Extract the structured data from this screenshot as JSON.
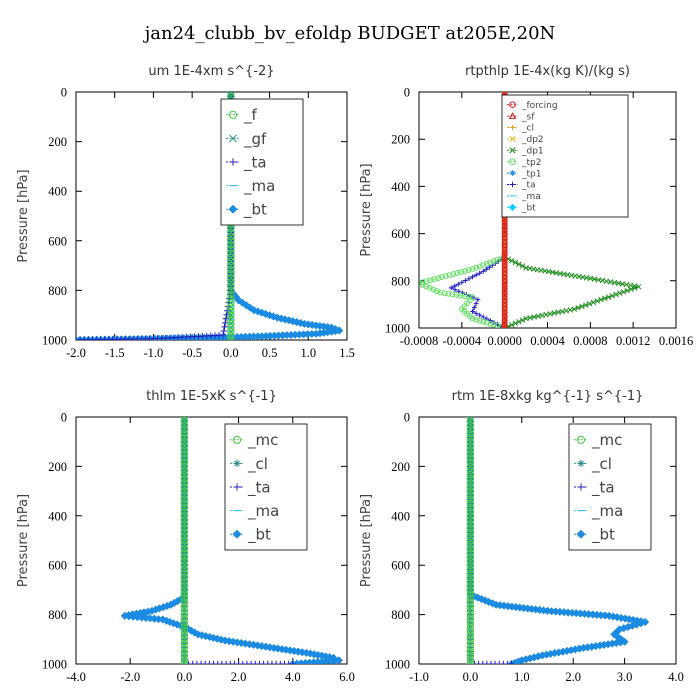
{
  "suptitle": "jan24_clubb_bv_efoldp  BUDGET at205E,20N",
  "chart_data": [
    {
      "type": "line",
      "title": "um   1E-4xm s^{-2}",
      "ylabel": "Pressure [hPa]",
      "xlim": [
        -2.0,
        1.5
      ],
      "ylim": [
        1000,
        0
      ],
      "xticks": [
        "-2.0",
        "-1.5",
        "-1.0",
        "-0.5",
        "0.0",
        "0.5",
        "1.0",
        "1.5"
      ],
      "yticks": [
        "0",
        "200",
        "400",
        "600",
        "800",
        "1000"
      ],
      "legend_position": "upper-right",
      "series": [
        {
          "name": "_f",
          "color": "#44cc44",
          "marker": "circle",
          "points": [
            [
              0.0,
              0
            ],
            [
              0.0,
              1000
            ]
          ]
        },
        {
          "name": "_gf",
          "color": "#2f8f8f",
          "marker": "x",
          "points": [
            [
              0.0,
              0
            ],
            [
              0.0,
              1000
            ]
          ]
        },
        {
          "name": "_ta",
          "color": "#2020c0",
          "marker": "plus",
          "points": [
            [
              0.0,
              0
            ],
            [
              0.0,
              800
            ],
            [
              -0.1,
              980
            ],
            [
              -1.0,
              995
            ],
            [
              -2.0,
              1000
            ]
          ]
        },
        {
          "name": "_ma",
          "color": "#30c0ff",
          "marker": "dash",
          "points": [
            [
              0.0,
              0
            ],
            [
              0.0,
              1000
            ]
          ]
        },
        {
          "name": "_bt",
          "color": "#1a8be0",
          "marker": "diamond",
          "points": [
            [
              0.0,
              0
            ],
            [
              0.0,
              760
            ],
            [
              0.0,
              800
            ],
            [
              0.1,
              840
            ],
            [
              0.3,
              880
            ],
            [
              0.6,
              910
            ],
            [
              0.95,
              935
            ],
            [
              1.3,
              950
            ],
            [
              1.4,
              962
            ],
            [
              1.1,
              975
            ],
            [
              0.4,
              985
            ],
            [
              -0.5,
              993
            ],
            [
              -2.0,
              1000
            ]
          ]
        }
      ]
    },
    {
      "type": "line",
      "title": "rtpthlp   1E-4x(kg K)/(kg s)",
      "ylabel": "Pressure [hPa]",
      "xlim": [
        -0.0008,
        0.0016
      ],
      "ylim": [
        1000,
        0
      ],
      "xticks": [
        "-0.0008",
        "-0.0004",
        "0.0000",
        "0.0004",
        "0.0008",
        "0.0012",
        "0.0016"
      ],
      "yticks": [
        "0",
        "200",
        "400",
        "600",
        "800",
        "1000"
      ],
      "legend_position": "upper-right",
      "series": [
        {
          "name": "_forcing",
          "color": "#e02020",
          "marker": "circle",
          "points": [
            [
              0.0,
              0
            ],
            [
              0.0,
              1000
            ]
          ]
        },
        {
          "name": "_sf",
          "color": "#d01818",
          "marker": "triangle",
          "points": [
            [
              0.0,
              0
            ],
            [
              0.0,
              1000
            ]
          ]
        },
        {
          "name": "_cl",
          "color": "#f0a020",
          "marker": "plus",
          "points": [
            [
              0.0,
              0
            ],
            [
              0.0,
              1000
            ]
          ]
        },
        {
          "name": "_dp2",
          "color": "#e8c020",
          "marker": "x",
          "points": [
            [
              0.0,
              0
            ],
            [
              0.0,
              1000
            ]
          ]
        },
        {
          "name": "_dp1",
          "color": "#209020",
          "marker": "x",
          "points": [
            [
              0.0,
              0
            ],
            [
              0.0,
              700
            ],
            [
              0.0002,
              745
            ],
            [
              0.0008,
              790
            ],
            [
              0.00125,
              825
            ],
            [
              0.0009,
              880
            ],
            [
              0.00065,
              920
            ],
            [
              0.0002,
              960
            ],
            [
              0.0,
              1000
            ]
          ]
        },
        {
          "name": "_tp2",
          "color": "#60e060",
          "marker": "circle",
          "points": [
            [
              0.0,
              0
            ],
            [
              0.0,
              700
            ],
            [
              -0.0003,
              750
            ],
            [
              -0.0008,
              810
            ],
            [
              -0.0006,
              850
            ],
            [
              -0.0003,
              870
            ],
            [
              -0.0004,
              920
            ],
            [
              -0.0003,
              960
            ],
            [
              0.0,
              1000
            ]
          ]
        },
        {
          "name": "_tp1",
          "color": "#1a8be0",
          "marker": "star",
          "points": [
            [
              0.0,
              0
            ],
            [
              0.0,
              1000
            ]
          ]
        },
        {
          "name": "_ta",
          "color": "#2020c0",
          "marker": "plus",
          "points": [
            [
              0.0,
              0
            ],
            [
              0.0,
              700
            ],
            [
              -0.0002,
              760
            ],
            [
              -0.0005,
              830
            ],
            [
              -0.00025,
              880
            ],
            [
              -0.0003,
              930
            ],
            [
              0.0,
              1000
            ]
          ]
        },
        {
          "name": "_ma",
          "color": "#30c0ff",
          "marker": "dash",
          "points": [
            [
              0.0,
              0
            ],
            [
              0.0,
              1000
            ]
          ]
        },
        {
          "name": "_bt",
          "color": "#00d0ff",
          "marker": "diamond",
          "points": [
            [
              0.0,
              0
            ],
            [
              0.0,
              1000
            ]
          ]
        }
      ]
    },
    {
      "type": "line",
      "title": "thlm   1E-5xK s^{-1}",
      "ylabel": "Pressure [hPa]",
      "xlim": [
        -4.0,
        6.0
      ],
      "ylim": [
        1000,
        0
      ],
      "xticks": [
        "-4.0",
        "-2.0",
        "0.0",
        "2.0",
        "4.0",
        "6.0"
      ],
      "yticks": [
        "0",
        "200",
        "400",
        "600",
        "800",
        "1000"
      ],
      "legend_position": "upper-right",
      "series": [
        {
          "name": "_mc",
          "color": "#44cc44",
          "marker": "circle",
          "points": [
            [
              0.0,
              0
            ],
            [
              0.0,
              1000
            ]
          ]
        },
        {
          "name": "_cl",
          "color": "#2f8f8f",
          "marker": "star",
          "points": [
            [
              0.0,
              0
            ],
            [
              0.0,
              1000
            ]
          ]
        },
        {
          "name": "_ta",
          "color": "#2020c0",
          "marker": "plus",
          "points": [
            [
              0.0,
              0
            ],
            [
              0.0,
              1000
            ],
            [
              4.0,
              1000
            ]
          ]
        },
        {
          "name": "_ma",
          "color": "#30c0ff",
          "marker": "dash",
          "points": [
            [
              0.0,
              0
            ],
            [
              0.0,
              1000
            ]
          ]
        },
        {
          "name": "_bt",
          "color": "#1a8be0",
          "marker": "diamond",
          "points": [
            [
              0.0,
              0
            ],
            [
              0.0,
              730
            ],
            [
              -0.5,
              760
            ],
            [
              -1.2,
              785
            ],
            [
              -2.2,
              805
            ],
            [
              -0.8,
              820
            ],
            [
              0.0,
              850
            ],
            [
              0.5,
              880
            ],
            [
              1.5,
              905
            ],
            [
              3.0,
              930
            ],
            [
              4.5,
              955
            ],
            [
              5.5,
              975
            ],
            [
              5.7,
              985
            ],
            [
              4.0,
              1000
            ]
          ]
        }
      ]
    },
    {
      "type": "line",
      "title": "rtm   1E-8xkg kg^{-1} s^{-1}",
      "ylabel": "Pressure [hPa]",
      "xlim": [
        -1.0,
        4.0
      ],
      "ylim": [
        1000,
        0
      ],
      "xticks": [
        "-1.0",
        "0.0",
        "1.0",
        "2.0",
        "3.0",
        "4.0"
      ],
      "yticks": [
        "0",
        "200",
        "400",
        "600",
        "800",
        "1000"
      ],
      "legend_position": "upper-right",
      "series": [
        {
          "name": "_mc",
          "color": "#44cc44",
          "marker": "circle",
          "points": [
            [
              0.0,
              0
            ],
            [
              0.0,
              1000
            ]
          ]
        },
        {
          "name": "_cl",
          "color": "#2f8f8f",
          "marker": "star",
          "points": [
            [
              0.0,
              0
            ],
            [
              0.0,
              1000
            ]
          ]
        },
        {
          "name": "_ta",
          "color": "#2020c0",
          "marker": "plus",
          "points": [
            [
              0.0,
              0
            ],
            [
              0.0,
              1000
            ],
            [
              0.8,
              1000
            ]
          ]
        },
        {
          "name": "_ma",
          "color": "#30c0ff",
          "marker": "dash",
          "points": [
            [
              0.0,
              0
            ],
            [
              0.0,
              1000
            ]
          ]
        },
        {
          "name": "_bt",
          "color": "#1a8be0",
          "marker": "diamond",
          "points": [
            [
              0.0,
              0
            ],
            [
              0.0,
              720
            ],
            [
              0.5,
              760
            ],
            [
              1.5,
              785
            ],
            [
              2.7,
              805
            ],
            [
              3.4,
              830
            ],
            [
              2.9,
              860
            ],
            [
              2.8,
              880
            ],
            [
              3.0,
              910
            ],
            [
              2.2,
              935
            ],
            [
              1.4,
              965
            ],
            [
              1.0,
              985
            ],
            [
              0.8,
              1000
            ]
          ]
        }
      ]
    }
  ]
}
